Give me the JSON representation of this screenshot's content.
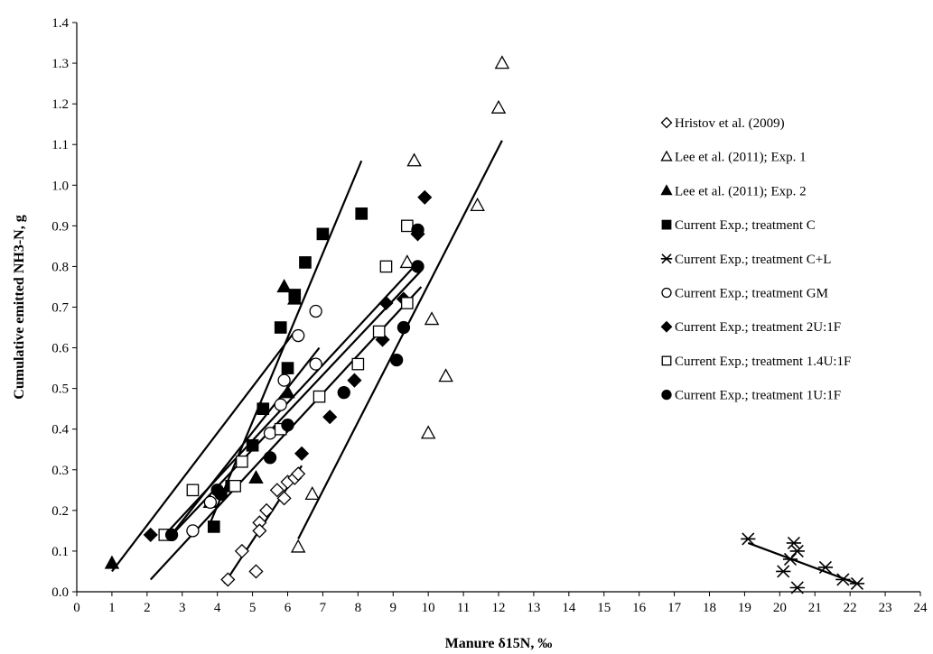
{
  "chart_data": {
    "type": "scatter",
    "xlabel": "Manure δ15N, ‰",
    "ylabel": "Cumulative emitted NH3-N, g",
    "xlim": [
      0,
      24
    ],
    "ylim": [
      0,
      1.4
    ],
    "x_ticks": [
      "0",
      "1",
      "2",
      "3",
      "4",
      "5",
      "6",
      "7",
      "8",
      "9",
      "10",
      "11",
      "12",
      "13",
      "14",
      "15",
      "16",
      "17",
      "18",
      "19",
      "20",
      "21",
      "22",
      "23",
      "24"
    ],
    "y_ticks": [
      "0.0",
      "0.1",
      "0.2",
      "0.3",
      "0.4",
      "0.5",
      "0.6",
      "0.7",
      "0.8",
      "0.9",
      "1.0",
      "1.1",
      "1.2",
      "1.3",
      "1.4"
    ],
    "grid": false,
    "legend_position": "right",
    "series": [
      {
        "name": "Hristov et al. (2009)",
        "marker": "diamond-open",
        "points": [
          [
            4.3,
            0.03
          ],
          [
            4.7,
            0.1
          ],
          [
            5.1,
            0.05
          ],
          [
            5.2,
            0.17
          ],
          [
            5.2,
            0.15
          ],
          [
            5.4,
            0.2
          ],
          [
            5.7,
            0.25
          ],
          [
            5.9,
            0.23
          ],
          [
            6.0,
            0.27
          ],
          [
            6.2,
            0.28
          ],
          [
            6.3,
            0.29
          ]
        ],
        "trend": [
          [
            4.2,
            0.02
          ],
          [
            6.4,
            0.31
          ]
        ]
      },
      {
        "name": "Lee et al. (2011); Exp. 1",
        "marker": "triangle-open",
        "points": [
          [
            6.3,
            0.11
          ],
          [
            6.7,
            0.24
          ],
          [
            9.4,
            0.81
          ],
          [
            9.6,
            1.06
          ],
          [
            10.0,
            0.39
          ],
          [
            10.1,
            0.67
          ],
          [
            10.5,
            0.53
          ],
          [
            11.4,
            0.95
          ],
          [
            12.0,
            1.19
          ],
          [
            12.1,
            1.3
          ]
        ],
        "trend": [
          [
            6.3,
            0.13
          ],
          [
            12.1,
            1.11
          ]
        ]
      },
      {
        "name": "Lee et al. (2011); Exp. 2",
        "marker": "triangle-filled",
        "points": [
          [
            1.0,
            0.07
          ],
          [
            3.8,
            0.22
          ],
          [
            5.1,
            0.28
          ],
          [
            5.9,
            0.75
          ],
          [
            6.0,
            0.49
          ],
          [
            6.2,
            0.72
          ]
        ],
        "trend": [
          [
            1.0,
            0.05
          ],
          [
            6.2,
            0.64
          ]
        ]
      },
      {
        "name": "Current Exp.; treatment C",
        "marker": "square-filled",
        "points": [
          [
            3.9,
            0.16
          ],
          [
            4.4,
            0.26
          ],
          [
            5.0,
            0.36
          ],
          [
            5.3,
            0.45
          ],
          [
            5.8,
            0.65
          ],
          [
            6.0,
            0.55
          ],
          [
            6.2,
            0.73
          ],
          [
            6.5,
            0.81
          ],
          [
            7.0,
            0.88
          ],
          [
            8.1,
            0.93
          ]
        ],
        "trend": [
          [
            3.8,
            0.17
          ],
          [
            8.1,
            1.06
          ]
        ]
      },
      {
        "name": "Current Exp.; treatment C+L",
        "marker": "asterisk",
        "points": [
          [
            19.1,
            0.13
          ],
          [
            20.1,
            0.05
          ],
          [
            20.3,
            0.08
          ],
          [
            20.4,
            0.12
          ],
          [
            20.5,
            0.1
          ],
          [
            20.5,
            0.01
          ],
          [
            21.3,
            0.06
          ],
          [
            21.8,
            0.03
          ],
          [
            22.2,
            0.02
          ]
        ],
        "trend": [
          [
            19.1,
            0.12
          ],
          [
            22.2,
            0.02
          ]
        ]
      },
      {
        "name": "Current Exp.; treatment GM",
        "marker": "circle-open",
        "points": [
          [
            3.3,
            0.15
          ],
          [
            3.8,
            0.22
          ],
          [
            5.5,
            0.39
          ],
          [
            5.8,
            0.46
          ],
          [
            5.9,
            0.52
          ],
          [
            6.3,
            0.63
          ],
          [
            6.8,
            0.56
          ],
          [
            6.8,
            0.69
          ]
        ],
        "trend": [
          [
            2.6,
            0.13
          ],
          [
            6.9,
            0.6
          ]
        ]
      },
      {
        "name": "Current Exp.; treatment 2U:1F",
        "marker": "diamond-filled",
        "points": [
          [
            2.1,
            0.14
          ],
          [
            6.4,
            0.34
          ],
          [
            7.2,
            0.43
          ],
          [
            7.9,
            0.52
          ],
          [
            8.7,
            0.62
          ],
          [
            8.8,
            0.71
          ],
          [
            9.3,
            0.72
          ],
          [
            9.7,
            0.88
          ],
          [
            9.9,
            0.97
          ]
        ],
        "trend": [
          [
            2.1,
            0.03
          ],
          [
            9.8,
            0.75
          ]
        ]
      },
      {
        "name": "Current Exp.; treatment 1.4U:1F",
        "marker": "square-open",
        "points": [
          [
            2.5,
            0.14
          ],
          [
            3.3,
            0.25
          ],
          [
            4.5,
            0.26
          ],
          [
            4.7,
            0.32
          ],
          [
            5.8,
            0.4
          ],
          [
            6.9,
            0.48
          ],
          [
            8.0,
            0.56
          ],
          [
            8.6,
            0.64
          ],
          [
            8.8,
            0.8
          ],
          [
            9.4,
            0.71
          ],
          [
            9.4,
            0.9
          ]
        ],
        "trend": [
          [
            2.4,
            0.13
          ],
          [
            9.6,
            0.8
          ]
        ]
      },
      {
        "name": "Current Exp.; treatment 1U:1F",
        "marker": "circle-filled",
        "points": [
          [
            2.7,
            0.14
          ],
          [
            4.0,
            0.25
          ],
          [
            4.1,
            0.24
          ],
          [
            5.5,
            0.33
          ],
          [
            6.0,
            0.41
          ],
          [
            7.6,
            0.49
          ],
          [
            9.1,
            0.57
          ],
          [
            9.3,
            0.65
          ],
          [
            9.7,
            0.8
          ],
          [
            9.7,
            0.89
          ]
        ],
        "trend": [
          [
            2.6,
            0.13
          ],
          [
            9.8,
            0.79
          ]
        ]
      }
    ]
  }
}
